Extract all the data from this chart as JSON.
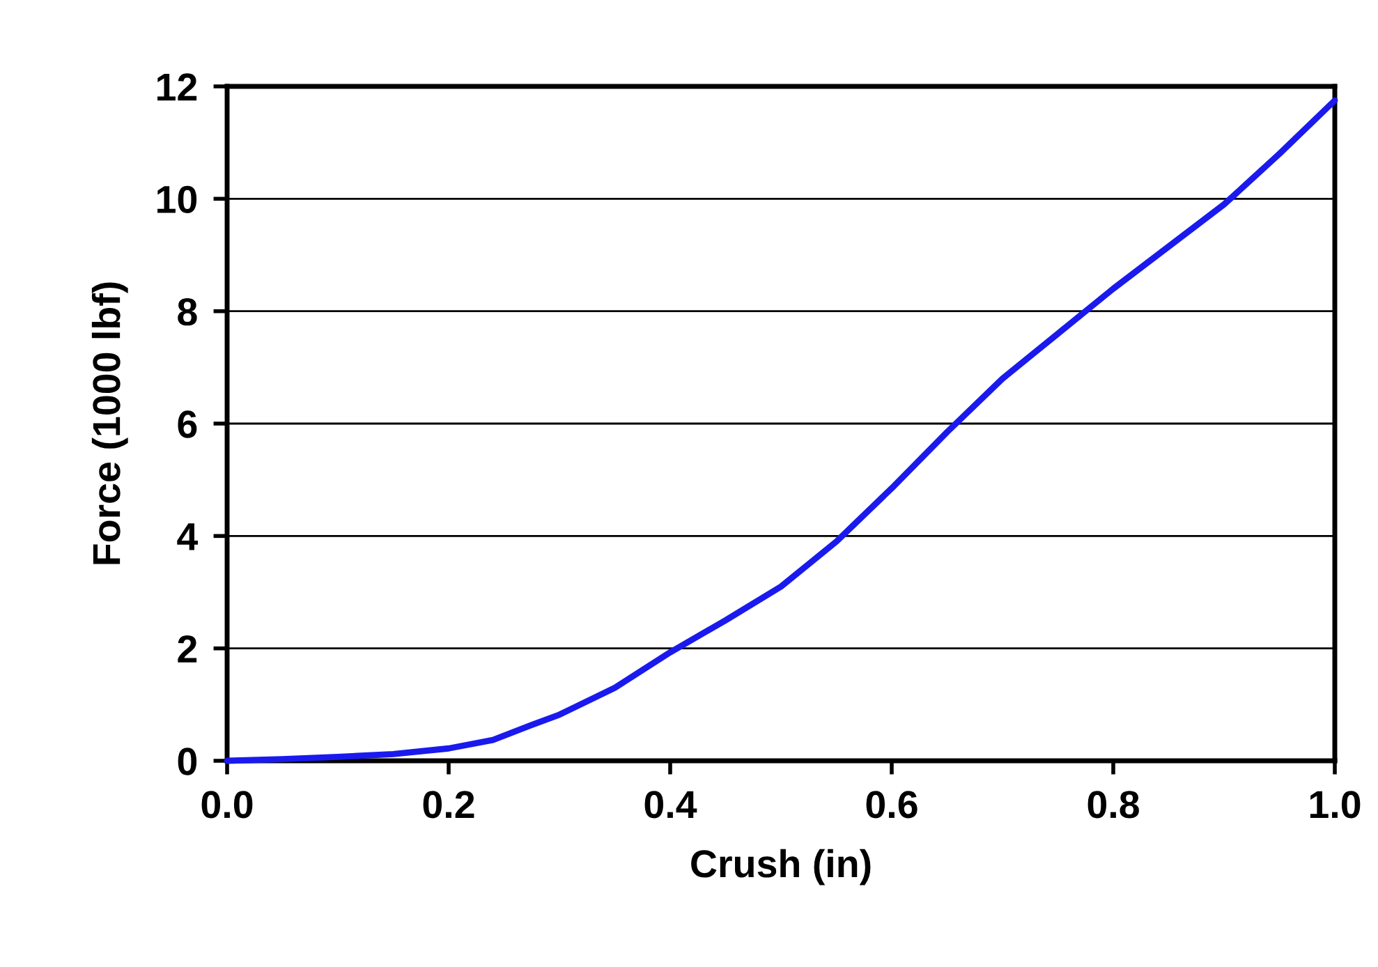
{
  "chart_data": {
    "type": "line",
    "xlabel": "Crush (in)",
    "ylabel": "Force (1000 lbf)",
    "series": [
      {
        "color": "#1a1aee",
        "x": [
          0,
          0.05,
          0.1,
          0.15,
          0.2,
          0.24,
          0.27,
          0.3,
          0.35,
          0.4,
          0.45,
          0.5,
          0.55,
          0.6,
          0.65,
          0.7,
          0.75,
          0.8,
          0.85,
          0.9,
          0.95,
          1.0
        ],
        "values": [
          0,
          0.03,
          0.07,
          0.12,
          0.22,
          0.37,
          0.6,
          0.82,
          1.3,
          1.93,
          2.5,
          3.1,
          3.9,
          4.85,
          5.85,
          6.8,
          7.6,
          8.4,
          9.15,
          9.9,
          10.8,
          11.75
        ]
      }
    ],
    "xlim": [
      0,
      1.0
    ],
    "ylim": [
      0,
      12
    ],
    "xticks": [
      {
        "value": 0,
        "label": "0.0"
      },
      0.2,
      0.4,
      0.6,
      0.8,
      {
        "value": 1.0,
        "label": "1.0"
      }
    ],
    "yticks": [
      0,
      2,
      4,
      6,
      8,
      10,
      12
    ],
    "grid": "y",
    "line_style": "solid",
    "marker": "none",
    "legend": false
  }
}
